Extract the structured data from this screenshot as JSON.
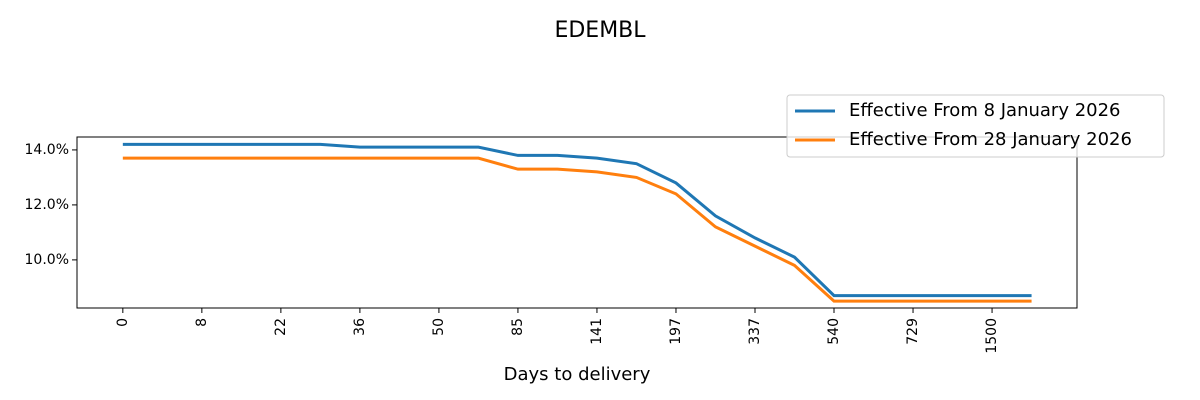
{
  "chart_data": {
    "type": "line",
    "title": "EDEMBL",
    "x_label": "Days to delivery",
    "categories": [
      "0",
      null,
      "8",
      null,
      "22",
      null,
      "36",
      null,
      "50",
      null,
      "85",
      null,
      "141",
      null,
      "197",
      null,
      "337",
      null,
      "540",
      null,
      "729",
      null,
      "1500",
      null
    ],
    "series": [
      {
        "name": "Effective From 8 January 2026",
        "color": "#1f77b4",
        "values": [
          14.2,
          14.2,
          14.2,
          14.2,
          14.2,
          14.2,
          14.1,
          14.1,
          14.1,
          14.1,
          13.8,
          13.8,
          13.7,
          13.5,
          12.8,
          11.6,
          10.8,
          10.1,
          8.7,
          8.7,
          8.7,
          8.7,
          8.7,
          8.7
        ]
      },
      {
        "name": "Effective From 28 January 2026",
        "color": "#ff7f0e",
        "values": [
          13.7,
          13.7,
          13.7,
          13.7,
          13.7,
          13.7,
          13.7,
          13.7,
          13.7,
          13.7,
          13.3,
          13.3,
          13.2,
          13.0,
          12.4,
          11.2,
          10.5,
          9.8,
          8.5,
          8.5,
          8.5,
          8.5,
          8.5,
          8.5
        ]
      }
    ],
    "xlim": [
      -1.16,
      24.15
    ],
    "ylim": [
      8.25,
      14.47
    ],
    "yticks": [
      {
        "value": 10,
        "label": "10.0%"
      },
      {
        "value": 12,
        "label": "12.0%"
      },
      {
        "value": 14,
        "label": "14.0%"
      }
    ],
    "grid": false,
    "legend": "upper right"
  }
}
